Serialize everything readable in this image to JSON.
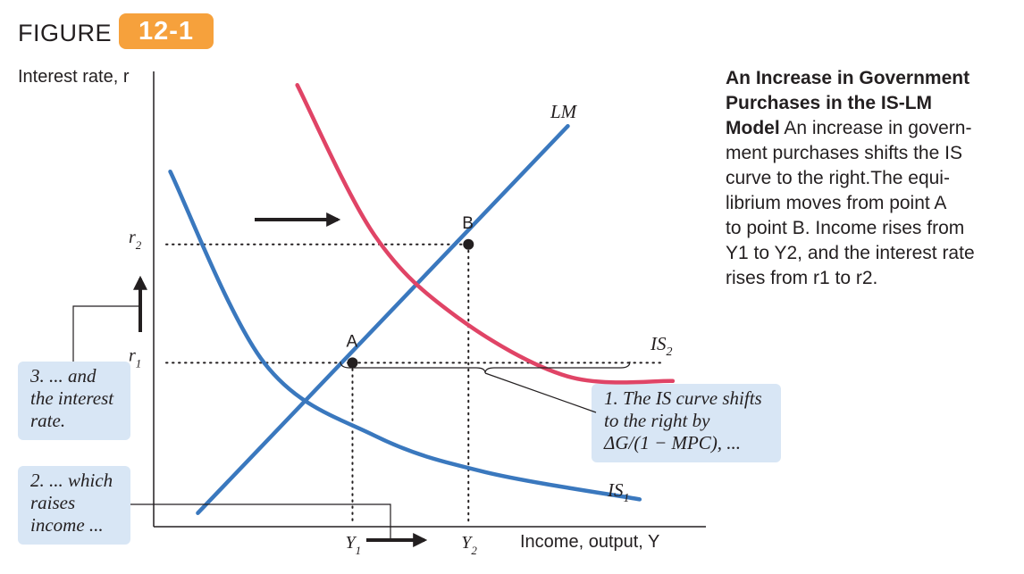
{
  "figure": {
    "label": "FIGURE",
    "number": "12-1"
  },
  "axes": {
    "y_label": "Interest rate, r",
    "x_label": "Income, output, Y"
  },
  "caption": {
    "heading_lines": [
      "An Increase in Government",
      "Purchases in the IS-LM",
      "Model"
    ],
    "body_first": "An increase in govern-",
    "body_lines": [
      "ment purchases shifts the IS",
      "curve to the right.The equi-",
      "librium moves from point A",
      "to point B. Income rises from",
      "Y1 to Y2, and the interest rate",
      "rises from r1 to r2."
    ]
  },
  "annotations": {
    "step1": [
      "1. The IS curve shifts",
      "to the right by",
      "ΔG/(1 − MPC), ..."
    ],
    "step2": [
      "2. ... which",
      "raises",
      "income ..."
    ],
    "step3": [
      "3. ... and",
      "the interest",
      "rate."
    ]
  },
  "colors": {
    "lm": "#3a78be",
    "is1": "#3a78be",
    "is2": "#e04466",
    "note_bg": "#d8e6f5",
    "badge": "#f6a13c"
  },
  "chart_data": {
    "type": "line",
    "title": "An Increase in Government Purchases in the IS-LM Model",
    "xlabel": "Income, output, Y",
    "ylabel": "Interest rate, r",
    "xlim": [
      0,
      10
    ],
    "ylim": [
      0,
      10
    ],
    "grid": false,
    "series": [
      {
        "name": "LM",
        "label_text": "LM",
        "x": [
          0.8,
          7.5
        ],
        "y": [
          0.3,
          8.8
        ]
      },
      {
        "name": "IS1",
        "label_main": "IS",
        "label_sub": "1",
        "x": [
          0.3,
          2.0,
          4.0,
          6.0,
          8.8
        ],
        "y": [
          7.8,
          3.6,
          2.0,
          1.2,
          0.6
        ]
      },
      {
        "name": "IS2",
        "label_main": "IS",
        "label_sub": "2",
        "x": [
          2.6,
          4.0,
          5.5,
          7.5,
          9.4
        ],
        "y": [
          9.7,
          6.4,
          4.6,
          3.3,
          3.2
        ]
      }
    ],
    "points": [
      {
        "name": "A",
        "x": 3.6,
        "y": 3.6
      },
      {
        "name": "B",
        "x": 5.7,
        "y": 6.2
      }
    ],
    "ticks": {
      "x": [
        {
          "main": "Y",
          "sub": "1",
          "value": 3.6
        },
        {
          "main": "Y",
          "sub": "2",
          "value": 5.7
        }
      ],
      "y": [
        {
          "main": "r",
          "sub": "1",
          "value": 3.6
        },
        {
          "main": "r",
          "sub": "2",
          "value": 6.2
        }
      ]
    }
  }
}
